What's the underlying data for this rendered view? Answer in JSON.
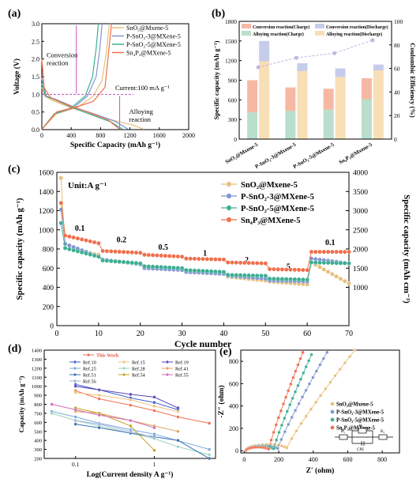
{
  "colors": {
    "sno2": "#e8c07a",
    "psno2_3": "#7f95cf",
    "psno2_5": "#3cae92",
    "sn4p3": "#f06f4d",
    "conv_charge": "#f7b8a3",
    "conv_discharge": "#c6cceb",
    "alloy_charge": "#b9dfcc",
    "alloy_discharge": "#f8dfb6",
    "marker_magenta": "#c84fc0",
    "ce_line": "#c3b5dc"
  },
  "chart_data": [
    {
      "id": "a",
      "panel": "(a)",
      "type": "line",
      "xlabel": "Specific Capacity (mAh g⁻¹)",
      "ylabel": "Voltage (V)",
      "xlim": [
        0,
        2000
      ],
      "ylim": [
        0,
        3.0
      ],
      "xticks": [
        "0",
        "400",
        "800",
        "1200",
        "1600",
        "2000"
      ],
      "yticks": [
        "0.0",
        "0.5",
        "1.0",
        "1.5",
        "2.0",
        "2.5",
        "3.0"
      ],
      "legend": [
        "SnO₂@Mxene-5",
        "P-SnO₂-3@MXene-5",
        "P-SnO₂-5@MXene-5",
        "Sn₄P₃@MXene-5"
      ],
      "legend_position": "top-right",
      "annotations": {
        "conversion": "Conversion\nreaction",
        "current": "Current:100 mA g⁻¹",
        "alloying": "Alloying\nreaction"
      },
      "series": [
        {
          "name": "SnO₂@Mxene-5",
          "color_key": "sno2",
          "discharge": [
            [
              0,
              1.2
            ],
            [
              40,
              0.95
            ],
            [
              150,
              0.82
            ],
            [
              400,
              0.62
            ],
            [
              700,
              0.42
            ],
            [
              1000,
              0.25
            ],
            [
              1250,
              0.12
            ],
            [
              1390,
              0.01
            ]
          ],
          "charge": [
            [
              0,
              0.01
            ],
            [
              200,
              0.45
            ],
            [
              480,
              0.62
            ],
            [
              700,
              0.95
            ],
            [
              820,
              1.4
            ],
            [
              880,
              2.2
            ],
            [
              920,
              3.0
            ]
          ]
        },
        {
          "name": "P-SnO₂-3@MXene-5",
          "color_key": "psno2_3",
          "discharge": [
            [
              0,
              1.45
            ],
            [
              60,
              0.95
            ],
            [
              200,
              0.85
            ],
            [
              450,
              0.63
            ],
            [
              750,
              0.42
            ],
            [
              1000,
              0.23
            ],
            [
              1180,
              0.01
            ]
          ],
          "charge": [
            [
              0,
              0.01
            ],
            [
              180,
              0.45
            ],
            [
              430,
              0.62
            ],
            [
              620,
              0.95
            ],
            [
              740,
              1.5
            ],
            [
              790,
              2.3
            ],
            [
              820,
              3.0
            ]
          ]
        },
        {
          "name": "P-SnO₂-5@MXene-5",
          "color_key": "psno2_5",
          "discharge": [
            [
              0,
              1.3
            ],
            [
              50,
              0.95
            ],
            [
              180,
              0.84
            ],
            [
              420,
              0.62
            ],
            [
              700,
              0.4
            ],
            [
              940,
              0.22
            ],
            [
              1100,
              0.01
            ]
          ],
          "charge": [
            [
              0,
              0.01
            ],
            [
              170,
              0.45
            ],
            [
              400,
              0.62
            ],
            [
              590,
              0.95
            ],
            [
              690,
              1.5
            ],
            [
              740,
              2.3
            ],
            [
              770,
              3.0
            ]
          ]
        },
        {
          "name": "Sn₄P₃@MXene-5",
          "color_key": "sn4p3",
          "discharge": [
            [
              0,
              2.0
            ],
            [
              30,
              1.2
            ],
            [
              120,
              0.9
            ],
            [
              350,
              0.7
            ],
            [
              650,
              0.48
            ],
            [
              900,
              0.28
            ],
            [
              1060,
              0.01
            ]
          ],
          "charge": [
            [
              0,
              0.01
            ],
            [
              200,
              0.5
            ],
            [
              480,
              0.65
            ],
            [
              700,
              0.8
            ],
            [
              860,
              1.2
            ],
            [
              910,
              2.2
            ],
            [
              950,
              3.0
            ]
          ]
        }
      ]
    },
    {
      "id": "b",
      "panel": "(b)",
      "type": "bar",
      "ylabel": "Specific capacity (mAh g⁻¹)",
      "y2label": "Coulombic Efficiency (%)",
      "ylim": [
        0,
        1800
      ],
      "y2lim": [
        0,
        100
      ],
      "yticks": [
        "0",
        "300",
        "600",
        "900",
        "1200",
        "1500",
        "1800"
      ],
      "y2ticks": [
        "0",
        "20",
        "40",
        "60",
        "80",
        "100"
      ],
      "categories": [
        "SnO₂@Mxene-5",
        "P-SnO₂-3@Mxene-5",
        "P-SnO₂-5@Mxene-5",
        "Sn₄P₃@Mxene-5"
      ],
      "legend": [
        "Conversion reaction(Charge)",
        "Conversion reaction(Discharge)",
        "Alloying reaction(Charge)",
        "Alloying reaction(Discharge)"
      ],
      "series": [
        {
          "name": "Alloying reaction(Charge)",
          "color_key": "alloy_charge",
          "values": [
            410,
            430,
            450,
            610
          ]
        },
        {
          "name": "Conversion reaction(Charge)",
          "color_key": "conv_charge",
          "values": [
            490,
            360,
            320,
            320
          ]
        },
        {
          "name": "Alloying reaction(Discharge)",
          "color_key": "alloy_discharge",
          "values": [
            1190,
            1040,
            950,
            1050
          ]
        },
        {
          "name": "Conversion reaction(Discharge)",
          "color_key": "conv_discharge",
          "values": [
            310,
            120,
            130,
            90
          ]
        }
      ],
      "coulombic_efficiency": [
        61,
        69,
        73,
        84
      ]
    },
    {
      "id": "c",
      "panel": "(c)",
      "type": "scatter",
      "xlabel": "Cycle number",
      "ylabel": "Specific capacity (mAh g⁻¹)",
      "y2label": "Specific capacity (mAh cm⁻³)",
      "xlim": [
        0,
        70
      ],
      "ylim": [
        0,
        1600
      ],
      "y2lim": [
        0,
        4000
      ],
      "xticks": [
        "0",
        "10",
        "20",
        "30",
        "40",
        "50",
        "60",
        "70"
      ],
      "yticks": [
        "0",
        "200",
        "400",
        "600",
        "800",
        "1000",
        "1200",
        "1400",
        "1600"
      ],
      "y2ticks": [
        "1000",
        "1500",
        "2000",
        "2500",
        "3000",
        "3500",
        "4000"
      ],
      "unit_label": "Unit:A g⁻¹",
      "rate_labels": [
        {
          "text": "0.1",
          "cycle": 5.5,
          "cap": 990
        },
        {
          "text": "0.2",
          "cycle": 15.5,
          "cap": 870
        },
        {
          "text": "0.5",
          "cycle": 25.5,
          "cap": 790
        },
        {
          "text": "1",
          "cycle": 35.5,
          "cap": 730
        },
        {
          "text": "2",
          "cycle": 45.5,
          "cap": 660
        },
        {
          "text": "5",
          "cycle": 55.5,
          "cap": 590
        },
        {
          "text": "0.1",
          "cycle": 65.5,
          "cap": 840
        }
      ],
      "legend": [
        "SnO₂@Mxene-5",
        "P-SnO₂-3@MXene-5",
        "P-SnO₂-5@MXene-5",
        "Sn₄P₃@MXene-5"
      ],
      "series": [
        {
          "name": "SnO₂@Mxene-5",
          "color_key": "sno2",
          "first": 1540,
          "steps": [
            [
              820,
              740
            ],
            [
              690,
              650
            ],
            [
              620,
              580
            ],
            [
              560,
              540
            ],
            [
              510,
              470
            ],
            [
              460,
              430
            ],
            [
              660,
              440
            ]
          ]
        },
        {
          "name": "P-SnO₂-3@MXene-5",
          "color_key": "psno2_3",
          "first": 1210,
          "steps": [
            [
              870,
              720
            ],
            [
              690,
              640
            ],
            [
              600,
              580
            ],
            [
              560,
              540
            ],
            [
              520,
              490
            ],
            [
              470,
              460
            ],
            [
              700,
              650
            ]
          ]
        },
        {
          "name": "P-SnO₂-5@MXene-5",
          "color_key": "psno2_5",
          "first": 1070,
          "steps": [
            [
              820,
              720
            ],
            [
              680,
              650
            ],
            [
              620,
              600
            ],
            [
              580,
              560
            ],
            [
              530,
              520
            ],
            [
              490,
              480
            ],
            [
              660,
              650
            ]
          ]
        },
        {
          "name": "Sn₄P₃@MXene-5",
          "color_key": "sn4p3",
          "first": 1280,
          "steps": [
            [
              950,
              860
            ],
            [
              780,
              760
            ],
            [
              740,
              720
            ],
            [
              700,
              690
            ],
            [
              660,
              650
            ],
            [
              590,
              580
            ],
            [
              770,
              770
            ]
          ]
        }
      ]
    },
    {
      "id": "d",
      "panel": "(d)",
      "type": "line",
      "xlabel": "Log(Current density A g⁻¹)",
      "ylabel": "Capacity (mAh g⁻¹)",
      "xscale": "log",
      "xlim": [
        0.04,
        6
      ],
      "ylim": [
        200,
        1400
      ],
      "xticks": [
        "0.1",
        "1"
      ],
      "yticks": [
        "200",
        "300",
        "400",
        "500",
        "600",
        "700",
        "800",
        "900",
        "1000",
        "1100",
        "1200",
        "1300",
        "1400"
      ],
      "legend_position": "top",
      "series": [
        {
          "name": "This Work",
          "color": "#f06f4d",
          "points": [
            [
              0.1,
              950
            ],
            [
              0.2,
              860
            ],
            [
              0.5,
              790
            ],
            [
              1,
              730
            ],
            [
              2,
              660
            ],
            [
              5,
              590
            ]
          ]
        },
        {
          "name": "Ref.10",
          "color": "#3a5bd0",
          "points": [
            [
              0.1,
              1020
            ],
            [
              0.2,
              960
            ],
            [
              0.5,
              870
            ],
            [
              1,
              820
            ],
            [
              2,
              740
            ]
          ]
        },
        {
          "name": "Ref.15",
          "color": "#f2c27a",
          "points": [
            [
              0.1,
              930
            ],
            [
              0.2,
              900
            ],
            [
              0.5,
              850
            ],
            [
              1,
              780
            ],
            [
              2,
              720
            ]
          ]
        },
        {
          "name": "Ref.19",
          "color": "#5a44b8",
          "points": [
            [
              0.1,
              1000
            ],
            [
              0.2,
              960
            ],
            [
              0.5,
              910
            ],
            [
              1,
              880
            ],
            [
              2,
              760
            ]
          ]
        },
        {
          "name": "Ref.25",
          "color": "#7aa9e0",
          "points": [
            [
              0.05,
              720
            ],
            [
              0.1,
              660
            ],
            [
              0.2,
              590
            ],
            [
              0.5,
              520
            ],
            [
              1,
              470
            ],
            [
              5,
              300
            ]
          ]
        },
        {
          "name": "Ref.28",
          "color": "#9bd4c2",
          "points": [
            [
              0.05,
              700
            ],
            [
              0.1,
              620
            ],
            [
              0.2,
              560
            ],
            [
              0.5,
              480
            ],
            [
              1,
              420
            ],
            [
              2,
              330
            ],
            [
              5,
              240
            ]
          ]
        },
        {
          "name": "Ref.41",
          "color": "#e0a35a",
          "points": [
            [
              0.1,
              720
            ],
            [
              0.2,
              700
            ],
            [
              0.5,
              620
            ],
            [
              1,
              560
            ],
            [
              2,
              500
            ]
          ]
        },
        {
          "name": "Ref.51",
          "color": "#3a70b0",
          "points": [
            [
              0.1,
              580
            ],
            [
              0.2,
              540
            ],
            [
              0.5,
              480
            ],
            [
              1,
              440
            ],
            [
              2,
              400
            ],
            [
              5,
              200
            ]
          ]
        },
        {
          "name": "Ref.54",
          "color": "#c5a020",
          "points": [
            [
              0.1,
              760
            ],
            [
              0.2,
              700
            ],
            [
              0.5,
              560
            ],
            [
              1,
              290
            ]
          ]
        },
        {
          "name": "Ref.55",
          "color": "#d06ab8",
          "points": [
            [
              0.05,
              800
            ],
            [
              0.1,
              740
            ],
            [
              0.2,
              680
            ],
            [
              0.5,
              620
            ],
            [
              1,
              540
            ]
          ]
        },
        {
          "name": "Ref.56",
          "color": "#a0b0d8",
          "points": [
            [
              0.1,
              620
            ],
            [
              0.2,
              580
            ],
            [
              0.5,
              500
            ],
            [
              1,
              430
            ]
          ]
        }
      ]
    },
    {
      "id": "e",
      "panel": "(e)",
      "type": "scatter",
      "xlabel": "Z′  (ohm)",
      "ylabel": "-Z″ (ohm)",
      "xlim": [
        -20,
        900
      ],
      "ylim": [
        -20,
        900
      ],
      "xticks": [
        "0",
        "200",
        "400",
        "600",
        "800"
      ],
      "yticks": [
        "0",
        "200",
        "400",
        "600",
        "800"
      ],
      "legend": [
        "SnO₂@Mxene-5",
        "P-SnO₂-3@MXene-5",
        "P-SnO₂-5@MXene-5",
        "Sn₄P₃@MXene-5"
      ],
      "legend_position": "center-right",
      "inset": [
        "R₁",
        "R₂",
        "R₃",
        "CPE"
      ],
      "series": [
        {
          "name": "SnO₂@Mxene-5",
          "color_key": "sno2",
          "Rs": 10,
          "Rct": 250,
          "tail_end": [
            640,
            900
          ]
        },
        {
          "name": "P-SnO₂-3@MXene-5",
          "color_key": "psno2_3",
          "Rs": 10,
          "Rct": 195,
          "tail_end": [
            480,
            880
          ]
        },
        {
          "name": "P-SnO₂-5@MXene-5",
          "color_key": "psno2_5",
          "Rs": 10,
          "Rct": 170,
          "tail_end": [
            390,
            860
          ]
        },
        {
          "name": "Sn₄P₃@MXene-5",
          "color_key": "sn4p3",
          "Rs": 10,
          "Rct": 140,
          "tail_end": [
            340,
            880
          ]
        }
      ]
    }
  ]
}
